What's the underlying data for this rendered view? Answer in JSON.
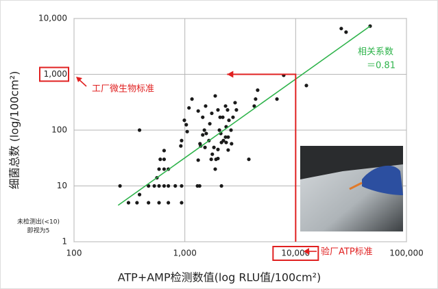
{
  "chart_data": {
    "type": "scatter",
    "x_label": "ATP+AMP检测数值(log RLU值/100cm²)",
    "y_label": "细菌总数 (log/100cm²)",
    "xscale": "log",
    "yscale": "log",
    "xlim": [
      100,
      100000
    ],
    "ylim": [
      1,
      10000
    ],
    "xticks": [
      100,
      {
        "value": 1000,
        "label": "1,000"
      },
      {
        "value": 10000,
        "label": "10,000"
      },
      {
        "value": 100000,
        "label": "100,000"
      }
    ],
    "yticks": [
      1,
      10,
      100,
      {
        "value": 1000,
        "label": "1,000"
      },
      {
        "value": 10000,
        "label": "10,000"
      }
    ],
    "grid": true,
    "series": [
      {
        "color": "#1a1a1a",
        "x": [
          260,
          310,
          370,
          470,
          585,
          710,
          935,
          470,
          530,
          585,
          650,
          710,
          820,
          935,
          390,
          560,
          585,
          650,
          710,
          600,
          650,
          390,
          650,
          935,
          920,
          990,
          1030,
          1050,
          1090,
          1160,
          1320,
          1540,
          1450,
          1500,
          1370,
          1320,
          1300,
          1360,
          1450,
          1560,
          1680,
          1750,
          1880,
          1990,
          2080,
          2050,
          2140,
          2200,
          2330,
          2430,
          2500,
          2610,
          2720,
          2920,
          2640,
          2360,
          1990,
          1830,
          1770,
          1910,
          1990,
          2140,
          2230,
          2360,
          2330,
          2460,
          1880,
          1730,
          2110,
          2460,
          2840,
          3780,
          4230,
          4350,
          4540,
          6780,
          7800,
          12500,
          25800,
          28500,
          47000,
          1520,
          1650,
          1390
        ],
        "y": [
          10,
          5,
          5,
          5,
          5,
          5,
          5,
          10,
          10,
          10,
          10,
          10,
          10,
          10,
          7,
          14,
          20,
          20,
          20,
          30,
          43,
          100,
          30,
          65,
          52,
          150,
          125,
          94,
          250,
          360,
          220,
          270,
          170,
          100,
          57,
          29,
          10,
          10,
          82,
          87,
          130,
          200,
          410,
          230,
          170,
          100,
          60,
          170,
          270,
          230,
          150,
          100,
          170,
          230,
          57,
          60,
          45,
          49,
          37,
          30,
          31,
          10,
          65,
          115,
          75,
          75,
          20,
          30,
          87,
          44,
          310,
          30,
          270,
          360,
          520,
          360,
          960,
          630,
          6600,
          5700,
          7300,
          49,
          65,
          52
        ]
      }
    ],
    "trendline": {
      "color": "#2db34a",
      "x": [
        250,
        47000
      ],
      "y": [
        4.5,
        7300
      ]
    },
    "correlation_label": "相关系数",
    "correlation_value": "＝0.81",
    "microbe_standard_label": "工厂微生物标准",
    "atp_standard_label": "验厂ATP标准",
    "note": [
      "未检测出(<10)",
      "即视为5"
    ],
    "standard_color": "#e02020"
  }
}
